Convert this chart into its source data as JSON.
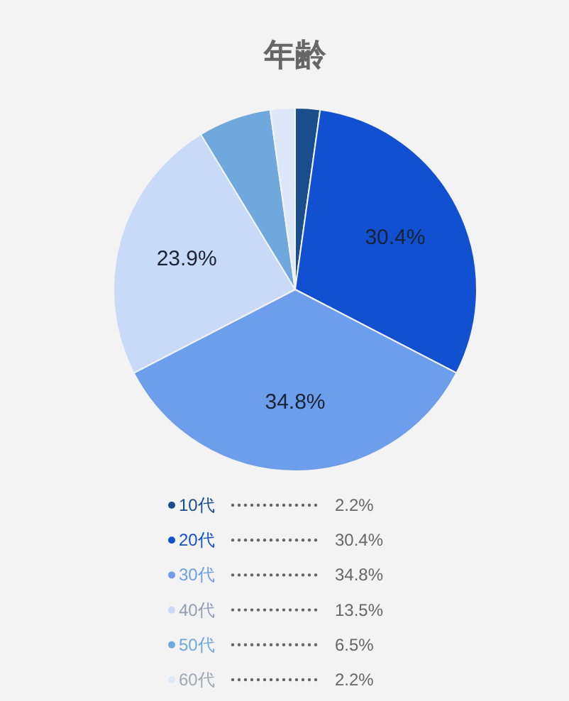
{
  "chart_data": {
    "type": "pie",
    "title": "年齢",
    "categories": [
      "10代",
      "20代",
      "30代",
      "40代",
      "50代",
      "60代"
    ],
    "values": [
      2.2,
      30.4,
      34.8,
      23.9,
      6.5,
      2.2
    ],
    "colors": [
      "#1a4d8c",
      "#1150d0",
      "#6d9eeb",
      "#c9daf8",
      "#6fa8dc",
      "#dce8f8"
    ],
    "annotations": [
      {
        "text": "30.4%",
        "x": "20代"
      },
      {
        "text": "34.8%",
        "x": "30代"
      },
      {
        "text": "23.9%",
        "x": "40代"
      },
      "2.2%",
      "30.4%",
      "34.8%",
      "13.5%",
      "6.5%",
      "2.2%"
    ],
    "legend": "bottom"
  }
}
